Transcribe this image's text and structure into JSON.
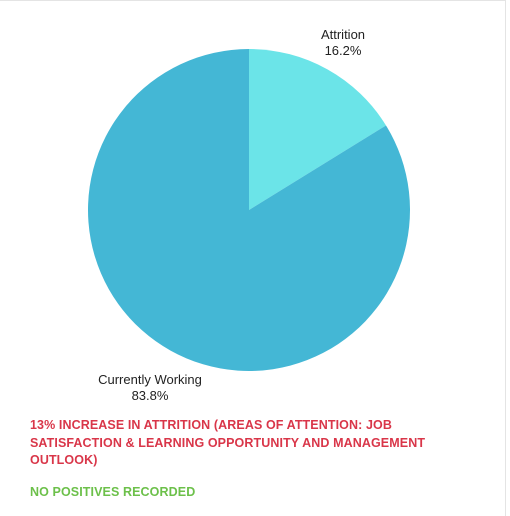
{
  "chart_data": {
    "type": "pie",
    "slices": [
      {
        "label": "Attrition",
        "value": 16.2,
        "display": "16.2%",
        "color": "#6be4e8"
      },
      {
        "label": "Currently Working",
        "value": 83.8,
        "display": "83.8%",
        "color": "#44b7d5"
      }
    ]
  },
  "notes": {
    "alert": "13% INCREASE IN ATTRITION (AREAS OF ATTENTION: JOB SATISFACTION & LEARNING OPPORTUNITY AND MANAGEMENT OUTLOOK)",
    "positive": "NO POSITIVES RECORDED",
    "alert_color": "#d93649",
    "positive_color": "#6cc04a"
  }
}
